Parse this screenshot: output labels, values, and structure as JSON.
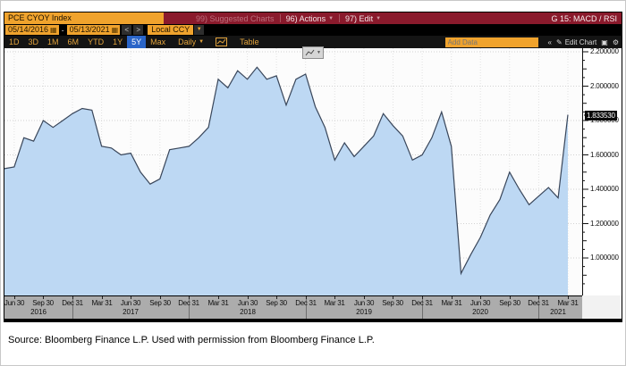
{
  "window": {
    "title_right": "G 15: MACD / RSI"
  },
  "topbar": {
    "ticker": "PCE CYOY Index",
    "suggested_charts": "99) Suggested Charts",
    "actions": "96) Actions",
    "edit": "97) Edit"
  },
  "datebar": {
    "start_date": "05/14/2016",
    "separator": "-",
    "end_date": "05/13/2021",
    "prev": "<",
    "next": ">",
    "currency": "Local CCY"
  },
  "toolbar": {
    "periods": [
      "1D",
      "3D",
      "1M",
      "6M",
      "YTD",
      "1Y",
      "5Y",
      "Max"
    ],
    "active_period": "5Y",
    "frequency": "Daily",
    "table_label": "Table",
    "add_data_placeholder": "Add Data",
    "collapse": "«",
    "edit_chart": "Edit Chart"
  },
  "icons": {
    "dropdown": "▼",
    "calendar": "▦",
    "pencil": "✎",
    "snapshot": "▣",
    "gear": "⚙"
  },
  "colors": {
    "bar_red": "#8a1a2c",
    "accent_amber": "#f0a32d",
    "active_blue": "#2a65c8",
    "area_fill": "#bdd8f3",
    "line_color": "#39465a",
    "axis_strip": "#acacac"
  },
  "scale": {
    "last_price": "1.833530"
  },
  "chart_data": {
    "type": "area",
    "title": "PCE CYOY Index",
    "xlabel": "",
    "ylabel": "",
    "grid": true,
    "legend": false,
    "ylim": [
      0.78,
      2.26
    ],
    "y_ticks": [
      1.0,
      1.2,
      1.4,
      1.6,
      1.8,
      2.0,
      2.2
    ],
    "y_tick_labels": [
      "1.000000",
      "1.200000",
      "1.400000",
      "1.600000",
      "1.800000",
      "2.000000",
      "2.200000"
    ],
    "x": [
      "2016-05",
      "2016-06",
      "2016-07",
      "2016-08",
      "2016-09",
      "2016-10",
      "2016-11",
      "2016-12",
      "2017-01",
      "2017-02",
      "2017-03",
      "2017-04",
      "2017-05",
      "2017-06",
      "2017-07",
      "2017-08",
      "2017-09",
      "2017-10",
      "2017-11",
      "2017-12",
      "2018-01",
      "2018-02",
      "2018-03",
      "2018-04",
      "2018-05",
      "2018-06",
      "2018-07",
      "2018-08",
      "2018-09",
      "2018-10",
      "2018-11",
      "2018-12",
      "2019-01",
      "2019-02",
      "2019-03",
      "2019-04",
      "2019-05",
      "2019-06",
      "2019-07",
      "2019-08",
      "2019-09",
      "2019-10",
      "2019-11",
      "2019-12",
      "2020-01",
      "2020-02",
      "2020-03",
      "2020-04",
      "2020-05",
      "2020-06",
      "2020-07",
      "2020-08",
      "2020-09",
      "2020-10",
      "2020-11",
      "2020-12",
      "2021-01",
      "2021-02",
      "2021-03"
    ],
    "values": [
      1.52,
      1.53,
      1.7,
      1.68,
      1.8,
      1.76,
      1.8,
      1.84,
      1.87,
      1.86,
      1.65,
      1.64,
      1.6,
      1.61,
      1.5,
      1.43,
      1.46,
      1.63,
      1.64,
      1.65,
      1.7,
      1.76,
      2.04,
      1.99,
      2.09,
      2.04,
      2.11,
      2.04,
      2.06,
      1.89,
      2.04,
      2.07,
      1.88,
      1.76,
      1.57,
      1.67,
      1.59,
      1.65,
      1.71,
      1.84,
      1.77,
      1.71,
      1.57,
      1.6,
      1.7,
      1.85,
      1.65,
      0.91,
      1.02,
      1.12,
      1.25,
      1.34,
      1.5,
      1.4,
      1.31,
      1.36,
      1.41,
      1.35,
      1.83353
    ],
    "last_price": 1.83353,
    "x_ticks": [
      {
        "i": 1,
        "label": "Jun 30"
      },
      {
        "i": 4,
        "label": "Sep 30"
      },
      {
        "i": 7,
        "label": "Dec 31"
      },
      {
        "i": 10,
        "label": "Mar 31"
      },
      {
        "i": 13,
        "label": "Jun 30"
      },
      {
        "i": 16,
        "label": "Sep 30"
      },
      {
        "i": 19,
        "label": "Dec 31"
      },
      {
        "i": 22,
        "label": "Mar 31"
      },
      {
        "i": 25,
        "label": "Jun 30"
      },
      {
        "i": 28,
        "label": "Sep 30"
      },
      {
        "i": 31,
        "label": "Dec 31"
      },
      {
        "i": 34,
        "label": "Mar 31"
      },
      {
        "i": 37,
        "label": "Jun 30"
      },
      {
        "i": 40,
        "label": "Sep 30"
      },
      {
        "i": 43,
        "label": "Dec 31"
      },
      {
        "i": 46,
        "label": "Mar 31"
      },
      {
        "i": 49,
        "label": "Jun 30"
      },
      {
        "i": 52,
        "label": "Sep 30"
      },
      {
        "i": 55,
        "label": "Dec 31"
      },
      {
        "i": 58,
        "label": "Mar 31"
      }
    ],
    "year_labels": [
      {
        "label": "2016",
        "center_i": 3.5
      },
      {
        "label": "2017",
        "center_i": 13
      },
      {
        "label": "2018",
        "center_i": 25
      },
      {
        "label": "2019",
        "center_i": 37
      },
      {
        "label": "2020",
        "center_i": 49
      },
      {
        "label": "2021",
        "center_i": 57
      }
    ],
    "year_separators_i": [
      7,
      19,
      31,
      43,
      55
    ]
  },
  "source_line": "Source:  Bloomberg Finance L.P. Used with permission from Bloomberg Finance L.P."
}
